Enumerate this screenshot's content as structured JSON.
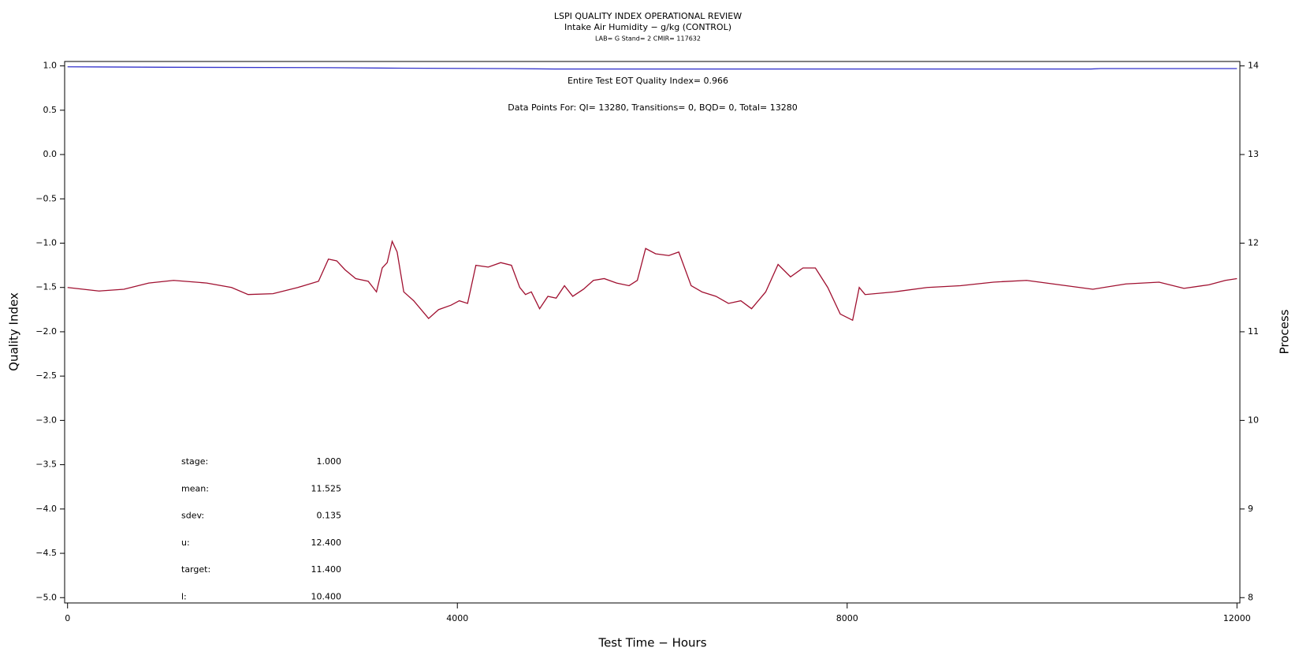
{
  "chart_data": {
    "type": "line",
    "title": "LSPI QUALITY INDEX OPERATIONAL REVIEW",
    "subtitle": "Intake Air Humidity − g/kg (CONTROL)",
    "caption": "LAB= G Stand= 2 CMIR= 117632",
    "annotations": [
      "Entire Test EOT Quality Index=   0.966",
      "Data Points For: QI= 13280, Transitions=     0, BQD=     0, Total= 13280"
    ],
    "stats": [
      [
        "stage:",
        "1.000"
      ],
      [
        "mean:",
        "11.525"
      ],
      [
        "sdev:",
        "0.135"
      ],
      [
        "u:",
        "12.400"
      ],
      [
        "target:",
        "11.400"
      ],
      [
        "l:",
        "10.400"
      ]
    ],
    "xlabel": "Test Time − Hours",
    "ylabel": "Quality Index",
    "y2label": "Process",
    "xlim": [
      -30,
      12030
    ],
    "xticks": [
      0,
      4000,
      8000,
      12000
    ],
    "ylim": [
      -5.06,
      1.05
    ],
    "yticks": [
      {
        "value": -5,
        "label": "−5.0"
      },
      {
        "value": -4.5,
        "label": "−4.5"
      },
      {
        "value": -4,
        "label": "−4.0"
      },
      {
        "value": -3.5,
        "label": "−3.5"
      },
      {
        "value": -3,
        "label": "−3.0"
      },
      {
        "value": -2.5,
        "label": "−2.5"
      },
      {
        "value": -2,
        "label": "−2.0"
      },
      {
        "value": -1.5,
        "label": "−1.5"
      },
      {
        "value": -1,
        "label": "−1.0"
      },
      {
        "value": -0.5,
        "label": "−0.5"
      },
      {
        "value": 0,
        "label": "0.0"
      },
      {
        "value": 0.5,
        "label": "0.5"
      },
      {
        "value": 1,
        "label": "1.0"
      }
    ],
    "y2lim": [
      7.94,
      14.05
    ],
    "y2ticks": [
      8,
      9,
      10,
      11,
      12,
      13,
      14
    ],
    "series": [
      {
        "color": "#3333cc",
        "axis": "y",
        "x": [
          0,
          1000,
          2700,
          3300,
          4500,
          5000,
          10500,
          10600,
          12000
        ],
        "values": [
          0.99,
          0.985,
          0.98,
          0.975,
          0.97,
          0.965,
          0.965,
          0.97,
          0.97
        ]
      },
      {
        "color": "#a01030",
        "axis": "y2",
        "x": [
          0,
          323,
          578,
          833,
          1088,
          1428,
          1683,
          1853,
          2108,
          2363,
          2575,
          2677,
          2762,
          2847,
          2957,
          3085,
          3170,
          3229,
          3280,
          3331,
          3382,
          3450,
          3552,
          3705,
          3807,
          3935,
          4020,
          4105,
          4190,
          4317,
          4445,
          4555,
          4640,
          4699,
          4759,
          4844,
          4929,
          5014,
          5099,
          5184,
          5294,
          5396,
          5507,
          5634,
          5762,
          5847,
          5932,
          6034,
          6170,
          6272,
          6399,
          6510,
          6654,
          6782,
          6909,
          7019,
          7164,
          7291,
          7419,
          7546,
          7674,
          7801,
          7929,
          8056,
          8124,
          8184,
          8481,
          8821,
          9161,
          9501,
          9841,
          10181,
          10521,
          10861,
          11201,
          11456,
          11711,
          11881,
          12000
        ],
        "values": [
          11.5,
          11.46,
          11.48,
          11.55,
          11.58,
          11.55,
          11.5,
          11.42,
          11.43,
          11.5,
          11.57,
          11.82,
          11.8,
          11.7,
          11.6,
          11.57,
          11.45,
          11.72,
          11.78,
          12.02,
          11.9,
          11.45,
          11.35,
          11.15,
          11.25,
          11.3,
          11.35,
          11.32,
          11.75,
          11.73,
          11.78,
          11.75,
          11.5,
          11.42,
          11.45,
          11.26,
          11.4,
          11.38,
          11.52,
          11.4,
          11.48,
          11.58,
          11.6,
          11.55,
          11.52,
          11.58,
          11.94,
          11.88,
          11.86,
          11.9,
          11.52,
          11.45,
          11.4,
          11.32,
          11.35,
          11.26,
          11.45,
          11.76,
          11.62,
          11.72,
          11.72,
          11.5,
          11.2,
          11.13,
          11.5,
          11.42,
          11.45,
          11.5,
          11.52,
          11.56,
          11.58,
          11.53,
          11.48,
          11.54,
          11.56,
          11.49,
          11.53,
          11.58,
          11.6
        ]
      }
    ]
  }
}
